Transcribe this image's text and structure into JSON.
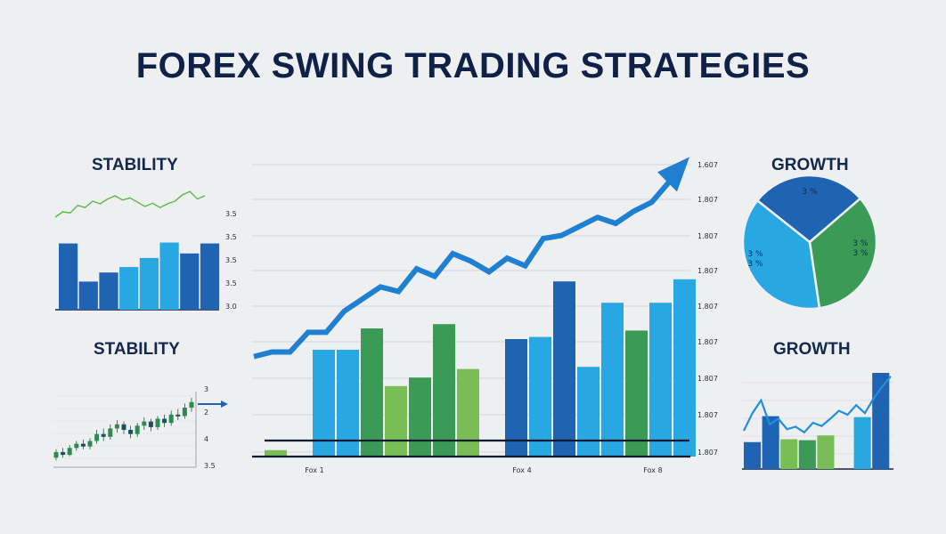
{
  "title": "FOREX SWING TRADING STRATEGIES",
  "colors": {
    "dark_blue": "#1f63b3",
    "light_blue": "#28a7e3",
    "green": "#3c9a57",
    "light_green": "#78bd56",
    "navy": "#0f2147"
  },
  "chart_data": [
    {
      "id": "main",
      "type": "bar",
      "title": "",
      "xlabel": "",
      "ylabel": "",
      "x_tick_labels": [
        "Fox 1",
        "Fox 4",
        "Fox 8"
      ],
      "y_tick_labels": [
        "1.607",
        "1.807",
        "1.807",
        "1.807",
        "1.807",
        "1.807",
        "1.807",
        "1.807",
        "1.807"
      ],
      "ylim": [
        0,
        100
      ],
      "bars": [
        {
          "v": 3,
          "c": "light_green"
        },
        {
          "v": 0,
          "c": "light_blue"
        },
        {
          "v": 50,
          "c": "light_blue"
        },
        {
          "v": 50,
          "c": "light_blue"
        },
        {
          "v": 60,
          "c": "green"
        },
        {
          "v": 33,
          "c": "light_green"
        },
        {
          "v": 37,
          "c": "green"
        },
        {
          "v": 62,
          "c": "green"
        },
        {
          "v": 41,
          "c": "light_green"
        },
        {
          "v": 0,
          "c": "light_blue"
        },
        {
          "v": 55,
          "c": "dark_blue"
        },
        {
          "v": 56,
          "c": "light_blue"
        },
        {
          "v": 82,
          "c": "dark_blue"
        },
        {
          "v": 42,
          "c": "light_blue"
        },
        {
          "v": 72,
          "c": "light_blue"
        },
        {
          "v": 59,
          "c": "green"
        },
        {
          "v": 72,
          "c": "light_blue"
        },
        {
          "v": 83,
          "c": "light_blue"
        }
      ],
      "trend_line": [
        32,
        35,
        35,
        48,
        48,
        62,
        70,
        78,
        75,
        90,
        85,
        100,
        95,
        88,
        97,
        92,
        110,
        112,
        118,
        124,
        120,
        128,
        134,
        148
      ]
    },
    {
      "id": "stability_1",
      "type": "bar",
      "title": "STABILITY",
      "y_tick_labels": [
        "3.5",
        "3.5",
        "3.5",
        "3.5",
        "3.0"
      ],
      "ylim": [
        0,
        100
      ],
      "bars": [
        {
          "v": 73,
          "c": "dark_blue"
        },
        {
          "v": 31,
          "c": "dark_blue"
        },
        {
          "v": 41,
          "c": "dark_blue"
        },
        {
          "v": 47,
          "c": "light_blue"
        },
        {
          "v": 57,
          "c": "light_blue"
        },
        {
          "v": 74,
          "c": "light_blue"
        },
        {
          "v": 62,
          "c": "dark_blue"
        },
        {
          "v": 73,
          "c": "dark_blue"
        }
      ],
      "trend_line": [
        30,
        40,
        38,
        52,
        48,
        60,
        55,
        64,
        70,
        62,
        66,
        58,
        50,
        56,
        48,
        55,
        60,
        72,
        78,
        64,
        70
      ]
    },
    {
      "id": "stability_2",
      "type": "line",
      "title": "STABILITY",
      "y_tick_labels": [
        "3",
        "2",
        "4",
        "3.5"
      ],
      "ylim": [
        0,
        100
      ],
      "candles": [
        {
          "o": 10,
          "c": 18,
          "h": 22,
          "l": 6
        },
        {
          "o": 18,
          "c": 14,
          "h": 24,
          "l": 10
        },
        {
          "o": 14,
          "c": 24,
          "h": 28,
          "l": 12
        },
        {
          "o": 24,
          "c": 30,
          "h": 34,
          "l": 20
        },
        {
          "o": 30,
          "c": 26,
          "h": 36,
          "l": 22
        },
        {
          "o": 26,
          "c": 34,
          "h": 38,
          "l": 22
        },
        {
          "o": 34,
          "c": 44,
          "h": 50,
          "l": 30
        },
        {
          "o": 44,
          "c": 40,
          "h": 52,
          "l": 34
        },
        {
          "o": 40,
          "c": 52,
          "h": 58,
          "l": 36
        },
        {
          "o": 52,
          "c": 58,
          "h": 64,
          "l": 46
        },
        {
          "o": 58,
          "c": 50,
          "h": 62,
          "l": 44
        },
        {
          "o": 50,
          "c": 44,
          "h": 56,
          "l": 38
        },
        {
          "o": 44,
          "c": 56,
          "h": 60,
          "l": 40
        },
        {
          "o": 56,
          "c": 62,
          "h": 68,
          "l": 50
        },
        {
          "o": 62,
          "c": 54,
          "h": 66,
          "l": 48
        },
        {
          "o": 54,
          "c": 66,
          "h": 70,
          "l": 50
        },
        {
          "o": 66,
          "c": 60,
          "h": 72,
          "l": 54
        },
        {
          "o": 60,
          "c": 72,
          "h": 78,
          "l": 56
        },
        {
          "o": 72,
          "c": 70,
          "h": 80,
          "l": 64
        },
        {
          "o": 70,
          "c": 82,
          "h": 88,
          "l": 66
        },
        {
          "o": 82,
          "c": 90,
          "h": 96,
          "l": 76
        }
      ]
    },
    {
      "id": "growth_pie",
      "type": "pie",
      "title": "GROWTH",
      "slices": [
        {
          "label": "3 %",
          "value": 28,
          "c": "dark_blue"
        },
        {
          "label": "3 %",
          "value": 34,
          "c": "green"
        },
        {
          "label": "3 %",
          "value": 38,
          "c": "light_blue"
        }
      ],
      "label_lines": [
        [
          "3 %"
        ],
        [
          "3 %",
          "3 %"
        ],
        [
          "3 %",
          "3 %"
        ]
      ]
    },
    {
      "id": "growth_2",
      "type": "bar",
      "title": "GROWTH",
      "ylim": [
        0,
        100
      ],
      "bars": [
        {
          "v": 28,
          "c": "dark_blue"
        },
        {
          "v": 55,
          "c": "dark_blue"
        },
        {
          "v": 31,
          "c": "light_green"
        },
        {
          "v": 30,
          "c": "green"
        },
        {
          "v": 35,
          "c": "light_green"
        },
        {
          "v": 0,
          "c": "light_blue"
        },
        {
          "v": 54,
          "c": "light_blue"
        },
        {
          "v": 100,
          "c": "dark_blue"
        }
      ],
      "trend_line": [
        40,
        62,
        78,
        48,
        55,
        42,
        45,
        38,
        50,
        46,
        55,
        65,
        60,
        72,
        62,
        80,
        95,
        108
      ]
    }
  ]
}
